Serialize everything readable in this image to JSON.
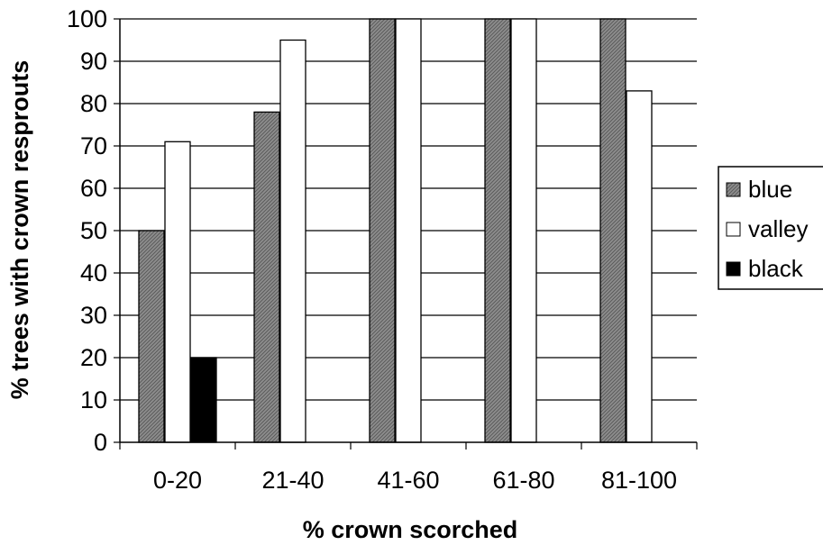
{
  "chart_data": {
    "type": "bar",
    "title": "",
    "xlabel": "% crown scorched",
    "ylabel": "% trees with crown resprouts",
    "categories": [
      "0-20",
      "21-40",
      "41-60",
      "61-80",
      "81-100"
    ],
    "ylim": [
      0,
      100
    ],
    "yticks": [
      0,
      10,
      20,
      30,
      40,
      50,
      60,
      70,
      80,
      90,
      100
    ],
    "grid": true,
    "legend": "right",
    "series": [
      {
        "name": "blue",
        "values": [
          50,
          78,
          100,
          100,
          100
        ],
        "color": "#8a8a8a",
        "pattern": "hatched"
      },
      {
        "name": "valley",
        "values": [
          71,
          95,
          100,
          100,
          83
        ],
        "color": "#ffffff"
      },
      {
        "name": "black",
        "values": [
          20,
          0,
          0,
          0,
          0
        ],
        "color": "#000000"
      }
    ]
  }
}
